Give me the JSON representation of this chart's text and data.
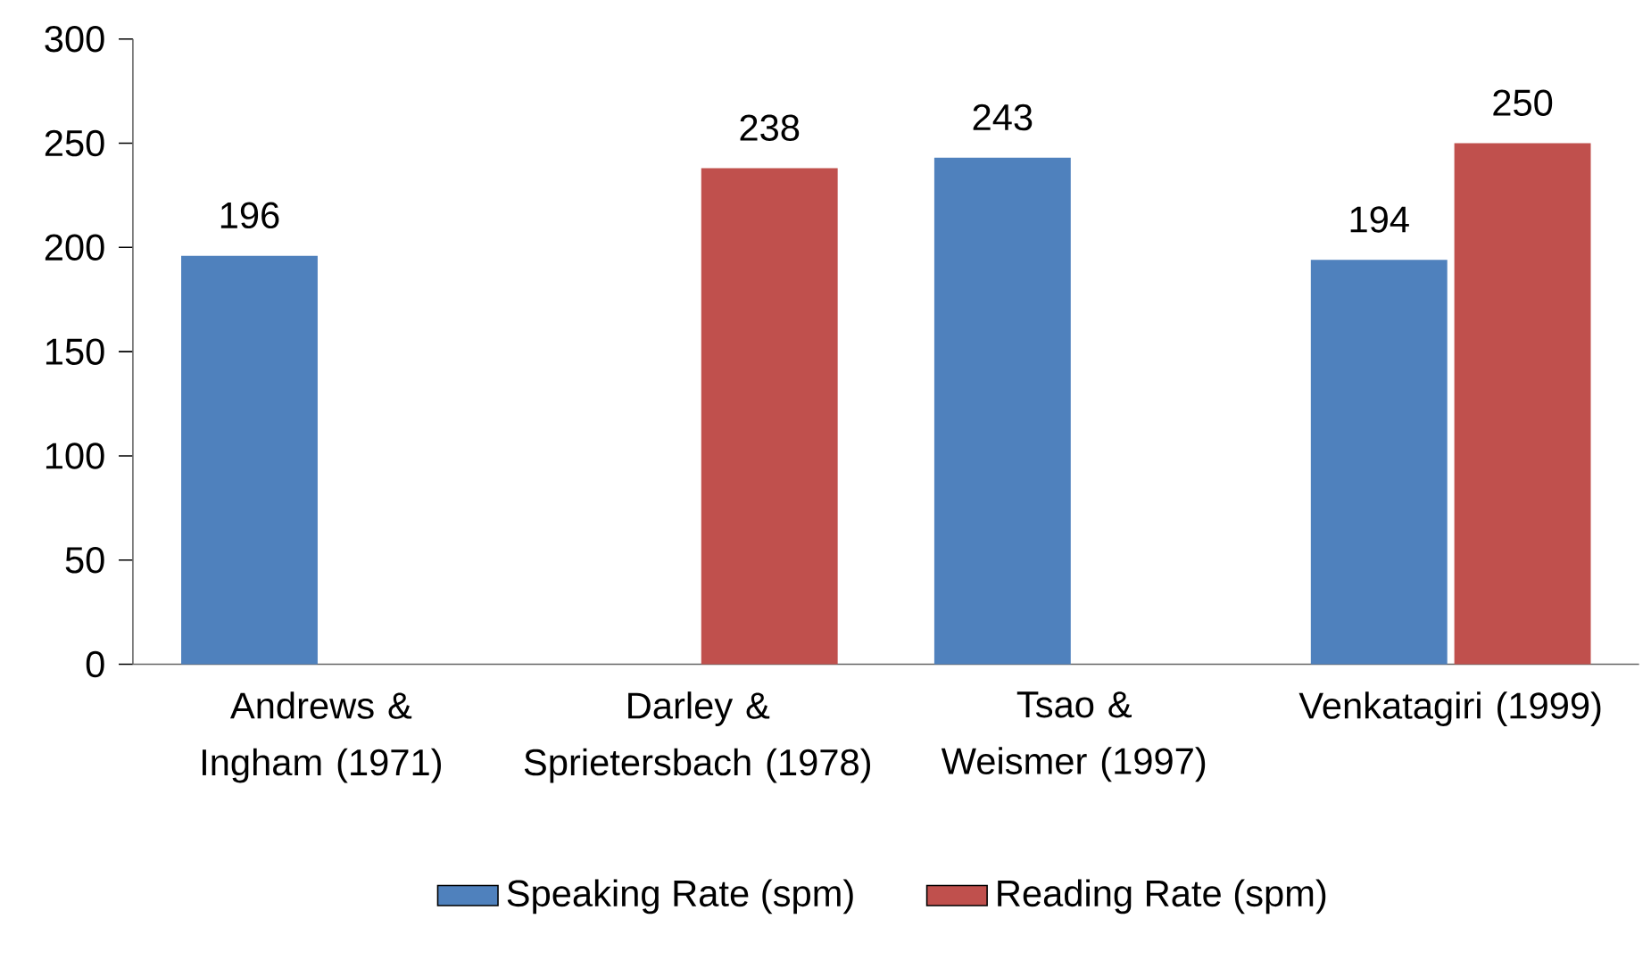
{
  "chart_data": {
    "type": "bar",
    "categories": [
      "Andrews & Ingham (1971)",
      "Darley & Sprietersbach (1978)",
      "Tsao & Weismer (1997)",
      "Venkatagiri (1999)"
    ],
    "series": [
      {
        "name": "Speaking Rate (spm)",
        "color": "#4f81bd",
        "values": [
          196,
          null,
          243,
          194
        ]
      },
      {
        "name": "Reading Rate (spm)",
        "color": "#c0504d",
        "values": [
          null,
          238,
          null,
          250
        ]
      }
    ],
    "ylim": [
      0,
      300
    ],
    "yticks": [
      0,
      50,
      100,
      150,
      200,
      250,
      300
    ],
    "data_labels": true,
    "legend": "bottom",
    "grid": false
  }
}
